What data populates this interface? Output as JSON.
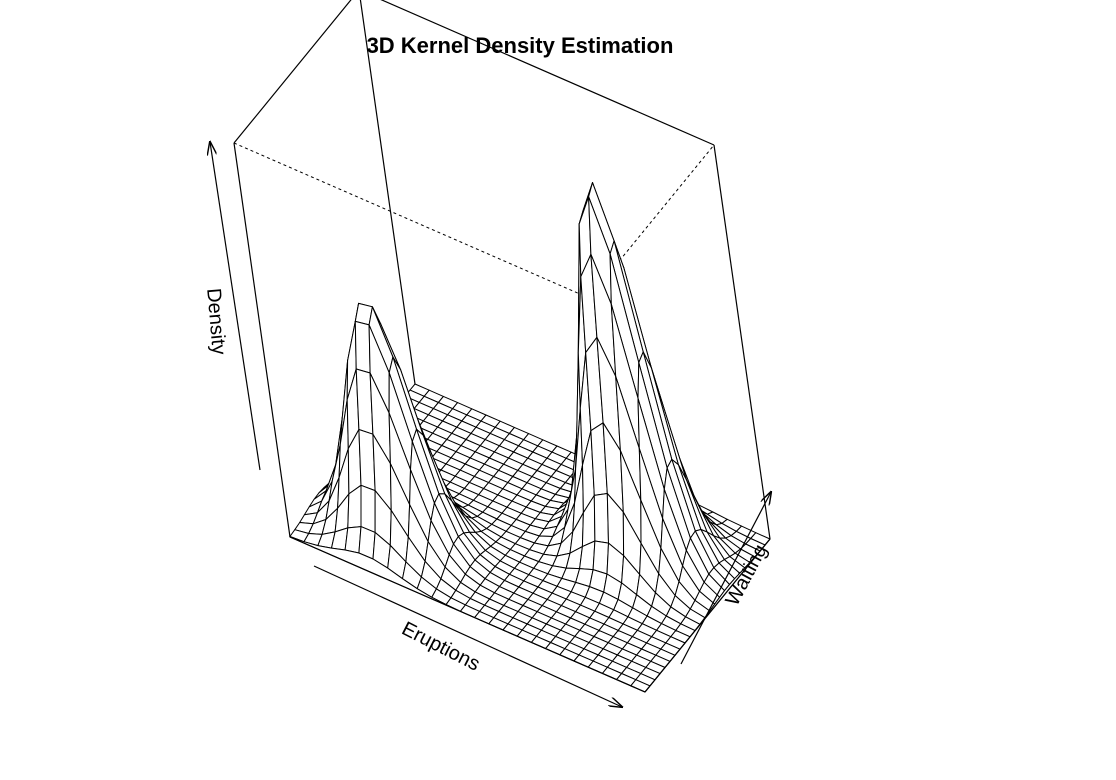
{
  "chart_data": {
    "type": "surface3d",
    "title": "3D Kernel Density Estimation",
    "xlabel": "Eruptions",
    "ylabel": "Waiting",
    "zlabel": "Density",
    "box": true,
    "ticks": false,
    "view": {
      "theta": 30,
      "phi": 20
    },
    "xlim": [
      1.0,
      5.5
    ],
    "ylim": [
      40,
      100
    ],
    "zlim": [
      0,
      0.035
    ],
    "grid_x": [
      1.0,
      1.18,
      1.36,
      1.54,
      1.72,
      1.9,
      2.08,
      2.26,
      2.44,
      2.62,
      2.8,
      2.98,
      3.16,
      3.34,
      3.52,
      3.7,
      3.88,
      4.06,
      4.24,
      4.42,
      4.6,
      4.78,
      4.96,
      5.14,
      5.32,
      5.5
    ],
    "grid_y": [
      40,
      42.4,
      44.8,
      47.2,
      49.6,
      52,
      54.4,
      56.8,
      59.2,
      61.6,
      64,
      66.4,
      68.8,
      71.2,
      73.6,
      76,
      78.4,
      80.8,
      83.2,
      85.6,
      88,
      90.4,
      92.8,
      95.2,
      97.6,
      100
    ],
    "peaks": [
      {
        "eruptions": 2.0,
        "waiting": 54,
        "density": 0.021
      },
      {
        "eruptions": 4.4,
        "waiting": 80,
        "density": 0.033
      }
    ],
    "colors": {
      "line": "#000000",
      "surface": "#ffffff"
    }
  }
}
